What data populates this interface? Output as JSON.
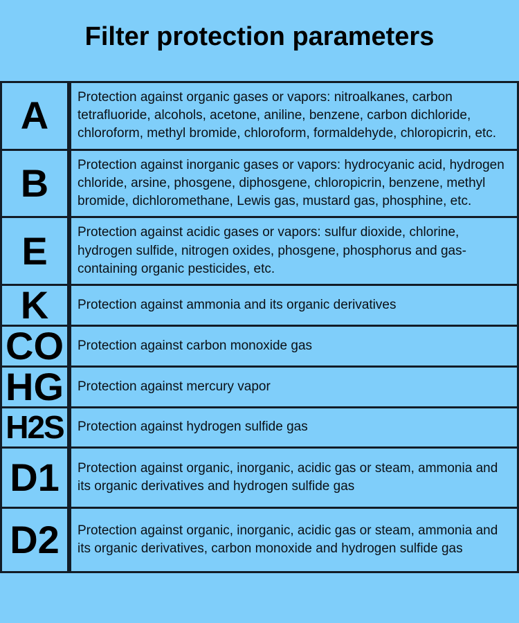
{
  "title": "Filter protection parameters",
  "colors": {
    "background": "#7FCEFA",
    "border": "#121c26",
    "text": "#0b1016"
  },
  "table": {
    "rows": [
      {
        "code": "A",
        "description": "Protection against organic gases or vapors: nitroalkanes, carbon tetrafluoride, alcohols, acetone, aniline, benzene, carbon dichloride, chloroform, methyl bromide, chloroform, formaldehyde, chloropicrin, etc."
      },
      {
        "code": "B",
        "description": "Protection against inorganic gases or vapors: hydrocyanic acid, hydrogen chloride, arsine, phosgene, diphosgene, chloropicrin, benzene, methyl bromide, dichloromethane, Lewis gas, mustard gas, phosphine, etc."
      },
      {
        "code": "E",
        "description": "Protection against acidic gases or vapors: sulfur dioxide, chlorine, hydrogen sulfide, nitrogen oxides, phosgene, phosphorus and gas-containing organic pesticides, etc."
      },
      {
        "code": "K",
        "description": "Protection against ammonia and its organic derivatives"
      },
      {
        "code": "CO",
        "description": "Protection against carbon monoxide gas"
      },
      {
        "code": "HG",
        "description": "Protection against mercury vapor"
      },
      {
        "code": "H2S",
        "description": "Protection against hydrogen sulfide gas"
      },
      {
        "code": "D1",
        "description": "Protection against organic, inorganic, acidic gas or steam, ammonia and its organic derivatives and hydrogen sulfide gas"
      },
      {
        "code": "D2",
        "description": "Protection against organic, inorganic, acidic gas or steam, ammonia and its organic derivatives, carbon monoxide and hydrogen sulfide gas"
      }
    ]
  }
}
